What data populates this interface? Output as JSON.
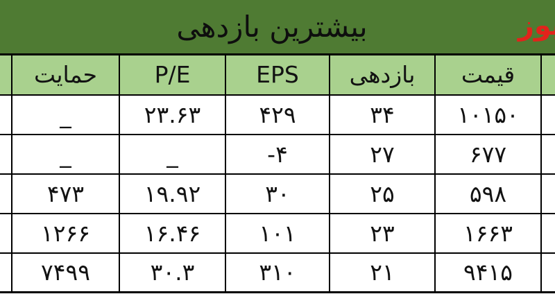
{
  "title": "بیشترین بازدهی",
  "logo_text": "یوز",
  "colors": {
    "title_bar_bg": "#4f7b33",
    "header_row_bg": "#a9d18e",
    "logo_red": "#e2231b",
    "border": "#000000"
  },
  "table": {
    "columns": [
      {
        "key": "symbol",
        "label": ""
      },
      {
        "key": "price",
        "label": "قیمت"
      },
      {
        "key": "return",
        "label": "بازدهی"
      },
      {
        "key": "eps",
        "label": "EPS"
      },
      {
        "key": "pe",
        "label": "P/E"
      },
      {
        "key": "support",
        "label": "حمایت"
      },
      {
        "key": "edge",
        "label": ""
      }
    ],
    "rows": [
      {
        "symbol": "",
        "price": "۱۰۱۵۰",
        "return": "۳۴",
        "eps": "۴۲۹",
        "pe": "۲۳.۶۳",
        "support": "_",
        "edge": ""
      },
      {
        "symbol": "",
        "price": "۶۷۷",
        "return": "۲۷",
        "eps": "-۴",
        "pe": "_",
        "support": "_",
        "edge": ""
      },
      {
        "symbol": "",
        "price": "۵۹۸",
        "return": "۲۵",
        "eps": "۳۰",
        "pe": "۱۹.۹۲",
        "support": "۴۷۳",
        "edge": ""
      },
      {
        "symbol": "",
        "price": "۱۶۶۳",
        "return": "۲۳",
        "eps": "۱۰۱",
        "pe": "۱۶.۴۶",
        "support": "۱۲۶۶",
        "edge": ""
      },
      {
        "symbol": "",
        "price": "۹۴۱۵",
        "return": "۲۱",
        "eps": "۳۱۰",
        "pe": "۳۰.۳",
        "support": "۷۴۹۹",
        "edge": ""
      }
    ]
  },
  "chart_data": {
    "type": "table",
    "title": "بیشترین بازدهی",
    "columns": [
      "قیمت",
      "بازدهی",
      "EPS",
      "P/E",
      "حمایت"
    ],
    "rows": [
      {
        "price": 10150,
        "return_pct": 34,
        "eps": 429,
        "pe": 23.63,
        "support": null
      },
      {
        "price": 677,
        "return_pct": 27,
        "eps": -4,
        "pe": null,
        "support": null
      },
      {
        "price": 598,
        "return_pct": 25,
        "eps": 30,
        "pe": 19.92,
        "support": 473
      },
      {
        "price": 1663,
        "return_pct": 23,
        "eps": 101,
        "pe": 16.46,
        "support": 1266
      },
      {
        "price": 9415,
        "return_pct": 21,
        "eps": 310,
        "pe": 30.3,
        "support": 7499
      }
    ],
    "notes": "RTL table; rightmost symbol column and leftmost column are cut off at image edges; '_' denotes missing value"
  }
}
